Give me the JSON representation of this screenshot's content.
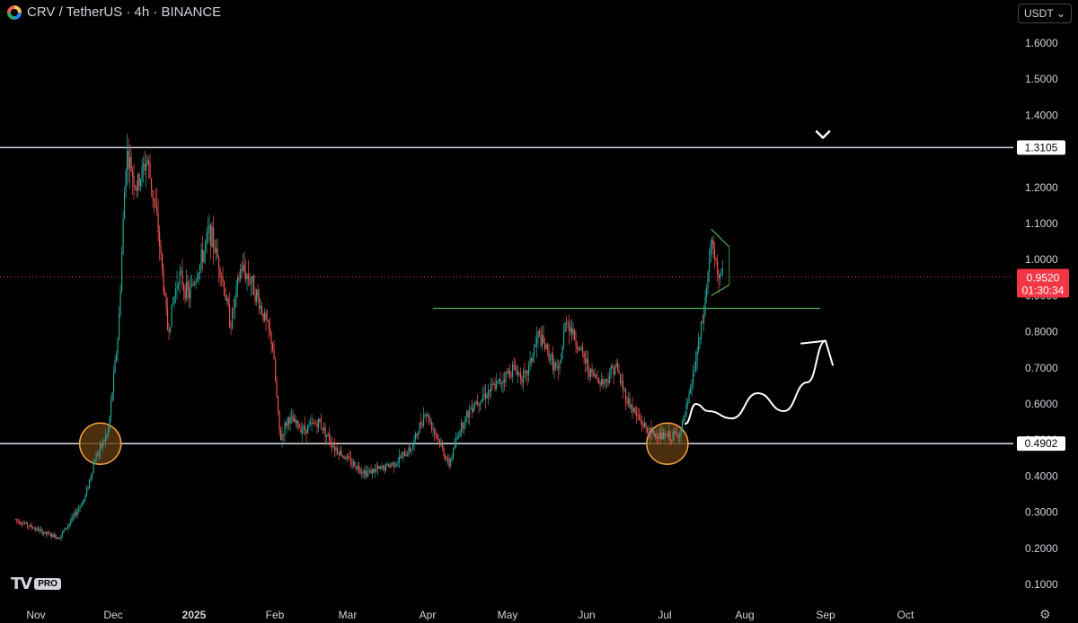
{
  "header": {
    "title": "CRV / TetherUS · 4h · BINANCE",
    "logo_icon": "curve-logo-icon"
  },
  "currency_selector": {
    "label": "USDT",
    "icon": "chevron-down-icon"
  },
  "branding": {
    "mark": "TV",
    "badge": "PRO"
  },
  "colors": {
    "up": "#26a69a",
    "down": "#ef5350",
    "level_line": "#d1d4dc",
    "resistance_line": "#4caf50",
    "pennant": "#4caf50",
    "circle_fill": "#5d3a10",
    "circle_stroke": "#f7a440",
    "price_label": "#f23645",
    "projection": "#ffffff"
  },
  "chart_data": {
    "type": "candlestick",
    "y_scale": [
      0.1,
      1.6
    ],
    "y_ticks": [
      "1.6000",
      "1.5000",
      "1.4000",
      "1.3000",
      "1.2000",
      "1.1000",
      "1.0000",
      "0.9000",
      "0.8000",
      "0.7000",
      "0.6000",
      "0.5000",
      "0.4000",
      "0.3000",
      "0.2000",
      "0.1000"
    ],
    "x_ticks": [
      {
        "label": "Nov",
        "date": "2024-11-01"
      },
      {
        "label": "Dec",
        "date": "2024-12-01"
      },
      {
        "label": "2025",
        "date": "2025-01-01"
      },
      {
        "label": "Feb",
        "date": "2025-02-01"
      },
      {
        "label": "Mar",
        "date": "2025-03-01"
      },
      {
        "label": "Apr",
        "date": "2025-04-01"
      },
      {
        "label": "May",
        "date": "2025-05-01"
      },
      {
        "label": "Jun",
        "date": "2025-06-01"
      },
      {
        "label": "Jul",
        "date": "2025-07-01"
      },
      {
        "label": "Aug",
        "date": "2025-08-01"
      },
      {
        "label": "Sep",
        "date": "2025-09-01"
      },
      {
        "label": "Oct",
        "date": "2025-10-01"
      }
    ],
    "price_path": [
      [
        "2024-10-24",
        0.28
      ],
      [
        "2024-11-05",
        0.24
      ],
      [
        "2024-11-10",
        0.23
      ],
      [
        "2024-11-15",
        0.28
      ],
      [
        "2024-11-20",
        0.34
      ],
      [
        "2024-11-24",
        0.45
      ],
      [
        "2024-11-29",
        0.52
      ],
      [
        "2024-12-03",
        0.8
      ],
      [
        "2024-12-06",
        1.3
      ],
      [
        "2024-12-10",
        1.2
      ],
      [
        "2024-12-14",
        1.28
      ],
      [
        "2024-12-18",
        1.1
      ],
      [
        "2024-12-22",
        0.8
      ],
      [
        "2024-12-26",
        0.96
      ],
      [
        "2024-12-30",
        0.9
      ],
      [
        "2025-01-03",
        0.98
      ],
      [
        "2025-01-07",
        1.08
      ],
      [
        "2025-01-11",
        0.98
      ],
      [
        "2025-01-15",
        0.82
      ],
      [
        "2025-01-19",
        0.98
      ],
      [
        "2025-01-23",
        0.94
      ],
      [
        "2025-01-27",
        0.86
      ],
      [
        "2025-01-31",
        0.77
      ],
      [
        "2025-02-03",
        0.5
      ],
      [
        "2025-02-06",
        0.56
      ],
      [
        "2025-02-12",
        0.53
      ],
      [
        "2025-02-18",
        0.55
      ],
      [
        "2025-02-24",
        0.48
      ],
      [
        "2025-03-02",
        0.44
      ],
      [
        "2025-03-08",
        0.41
      ],
      [
        "2025-03-14",
        0.42
      ],
      [
        "2025-03-20",
        0.44
      ],
      [
        "2025-03-26",
        0.48
      ],
      [
        "2025-03-31",
        0.58
      ],
      [
        "2025-04-04",
        0.52
      ],
      [
        "2025-04-09",
        0.43
      ],
      [
        "2025-04-13",
        0.53
      ],
      [
        "2025-04-18",
        0.6
      ],
      [
        "2025-04-23",
        0.63
      ],
      [
        "2025-04-28",
        0.66
      ],
      [
        "2025-05-03",
        0.7
      ],
      [
        "2025-05-08",
        0.67
      ],
      [
        "2025-05-13",
        0.79
      ],
      [
        "2025-05-17",
        0.74
      ],
      [
        "2025-05-21",
        0.68
      ],
      [
        "2025-05-24",
        0.84
      ],
      [
        "2025-05-28",
        0.77
      ],
      [
        "2025-06-03",
        0.68
      ],
      [
        "2025-06-08",
        0.66
      ],
      [
        "2025-06-12",
        0.71
      ],
      [
        "2025-06-16",
        0.62
      ],
      [
        "2025-06-20",
        0.57
      ],
      [
        "2025-06-25",
        0.52
      ],
      [
        "2025-06-30",
        0.51
      ],
      [
        "2025-07-04",
        0.51
      ],
      [
        "2025-07-07",
        0.52
      ],
      [
        "2025-07-10",
        0.6
      ],
      [
        "2025-07-13",
        0.72
      ],
      [
        "2025-07-16",
        0.84
      ],
      [
        "2025-07-19",
        1.05
      ],
      [
        "2025-07-21",
        0.97
      ],
      [
        "2025-07-24",
        0.952
      ]
    ],
    "horizontal_levels": [
      {
        "price": 1.3105,
        "label": "1.3105"
      },
      {
        "price": 0.4902,
        "label": "0.4902"
      }
    ],
    "resistance_segment": {
      "start": "2025-04-03",
      "end": "2025-08-30",
      "price": 0.865
    },
    "current_price": {
      "label": "0.9520",
      "countdown": "01:30:34",
      "price": 0.952
    },
    "annotations": {
      "support_circles": [
        {
          "date": "2024-11-26",
          "price": 0.49
        },
        {
          "date": "2025-07-02",
          "price": 0.49
        }
      ],
      "pennant": {
        "start": "2025-07-19",
        "end": "2025-07-26",
        "top": [
          1.085,
          1.035
        ],
        "bottom": [
          0.9,
          0.93
        ]
      },
      "projection_path": [
        [
          "2025-07-09",
          0.545
        ],
        [
          "2025-07-13",
          0.6
        ],
        [
          "2025-07-18",
          0.58
        ],
        [
          "2025-07-27",
          0.56
        ],
        [
          "2025-08-06",
          0.63
        ],
        [
          "2025-08-16",
          0.58
        ],
        [
          "2025-08-25",
          0.66
        ],
        [
          "2025-09-01",
          0.775
        ]
      ],
      "arrow_tip": {
        "date": "2025-09-01",
        "price": 0.775
      },
      "top_chevron": {
        "date": "2025-08-31",
        "price": 1.345
      }
    }
  }
}
